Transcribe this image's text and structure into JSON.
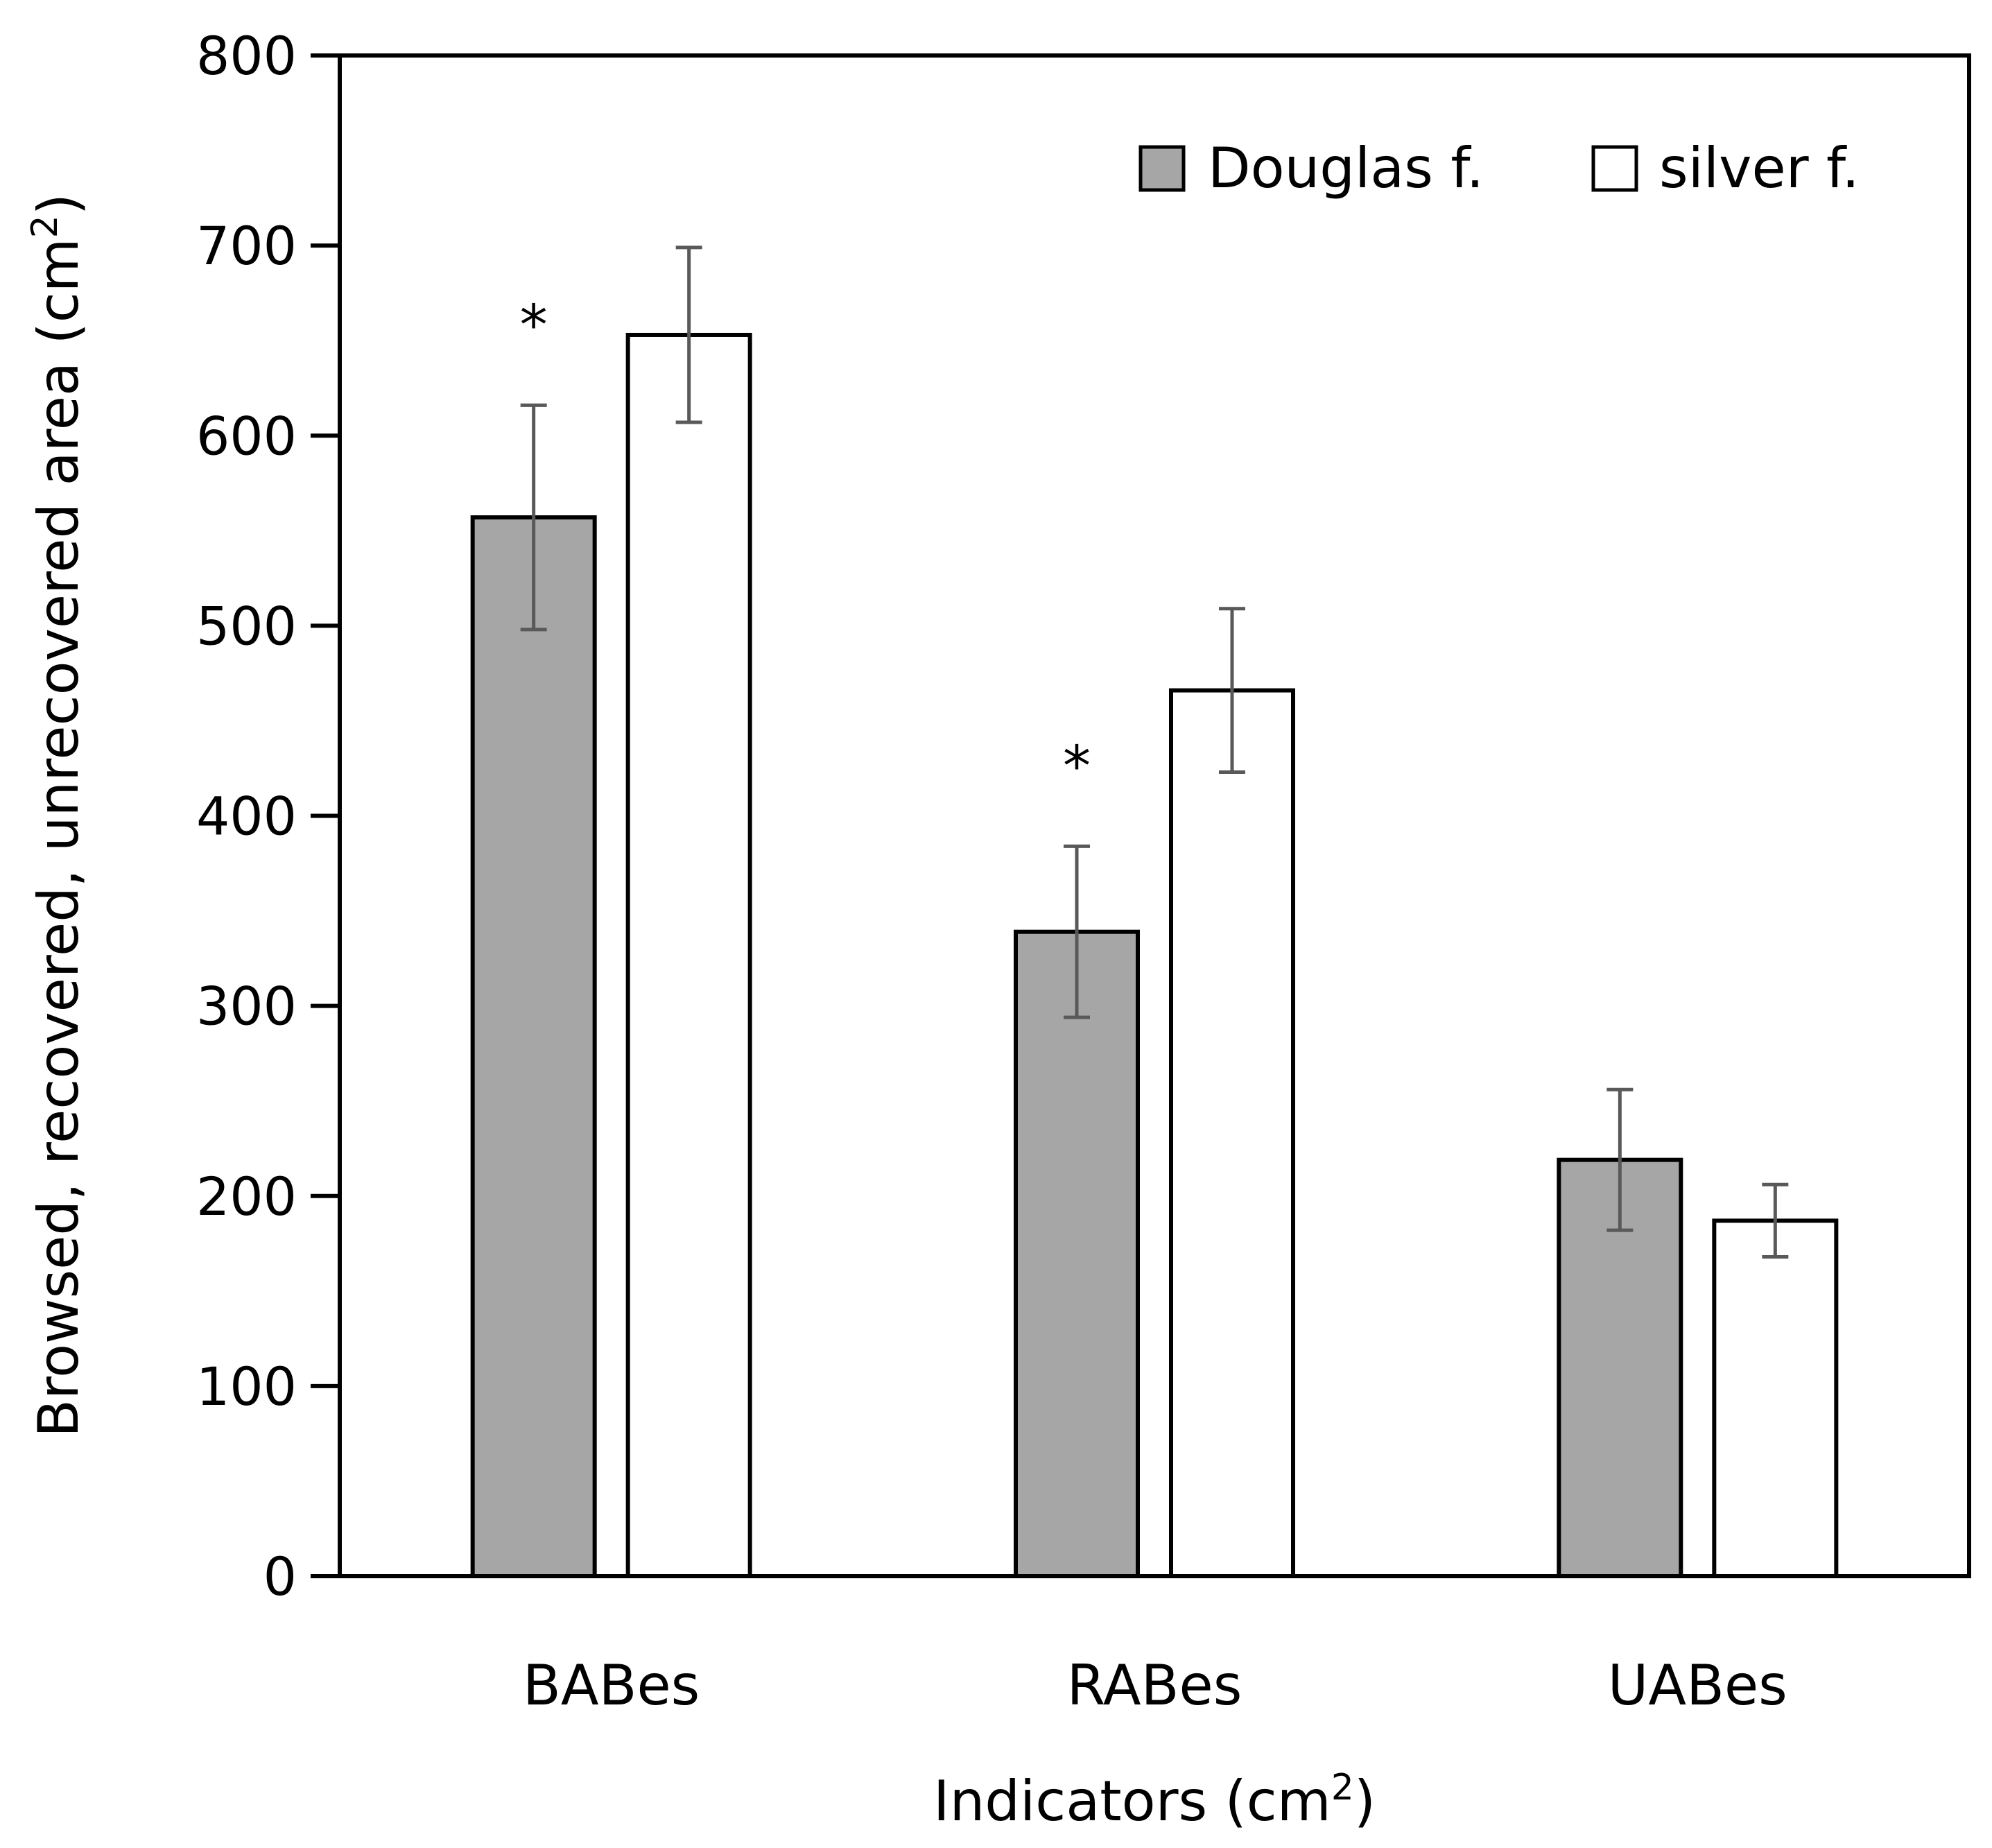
{
  "chart_data": {
    "type": "bar",
    "categories": [
      "BABes",
      "RABes",
      "UABes"
    ],
    "series": [
      {
        "name": "Douglas f.",
        "values": [
          557,
          339,
          219
        ],
        "errors": [
          59,
          45,
          37
        ],
        "color": "#a6a6a6"
      },
      {
        "name": "silver f.",
        "values": [
          653,
          466,
          187
        ],
        "errors": [
          46,
          43,
          19
        ],
        "color": "#ffffff"
      }
    ],
    "significance": [
      "*",
      "*",
      ""
    ],
    "xlabel": "Indicators (cm",
    "xlabel_sup": "2",
    "xlabel_end": ")",
    "ylabel": "Browsed, recovered, unrecovered area (cm",
    "ylabel_sup": "2",
    "ylabel_end": ")",
    "ylim": [
      0,
      800
    ],
    "yticks": [
      0,
      100,
      200,
      300,
      400,
      500,
      600,
      700,
      800
    ],
    "grid": false,
    "legend_position": "top-right",
    "error_bar_color": "#595959"
  }
}
